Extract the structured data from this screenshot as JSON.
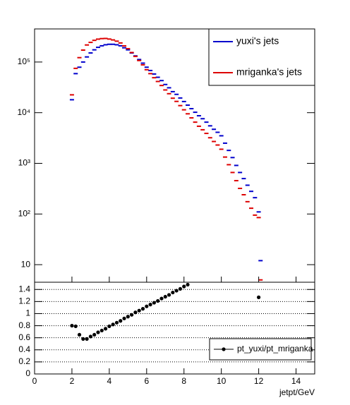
{
  "chart_data": [
    {
      "type": "scatter",
      "marker": "dash",
      "log_y": true,
      "x": [
        2.0,
        2.2,
        2.4,
        2.6,
        2.8,
        3.0,
        3.2,
        3.4,
        3.6,
        3.8,
        4.0,
        4.2,
        4.4,
        4.6,
        4.8,
        5.0,
        5.2,
        5.4,
        5.6,
        5.8,
        6.0,
        6.2,
        6.4,
        6.6,
        6.8,
        7.0,
        7.2,
        7.4,
        7.6,
        7.8,
        8.0,
        8.2,
        8.4,
        8.6,
        8.8,
        9.0,
        9.2,
        9.4,
        9.6,
        9.8,
        10.0,
        10.2,
        10.4,
        10.6,
        10.8,
        11.0,
        11.2,
        11.4,
        11.6,
        11.8,
        12.0,
        12.1
      ],
      "series": [
        {
          "name": "yuxi's jets",
          "color": "#0000cc",
          "values": [
            18000,
            59000,
            79000,
            100000,
            126000,
            151000,
            174000,
            195000,
            209000,
            219000,
            224000,
            224000,
            219000,
            209000,
            191000,
            174000,
            151000,
            132000,
            112000,
            95000,
            79000,
            68000,
            58000,
            50000,
            43000,
            36000,
            31000,
            26000,
            23000,
            19500,
            16600,
            14100,
            12000,
            10200,
            8700,
            7600,
            6500,
            5500,
            4700,
            4100,
            3500,
            2500,
            1800,
            1300,
            910,
            660,
            500,
            370,
            280,
            210,
            110,
            12
          ]
        },
        {
          "name": "mriganka's jets",
          "color": "#dd0000",
          "values": [
            22500,
            75000,
            122000,
            172000,
            217000,
            244000,
            268000,
            283000,
            290000,
            292000,
            284000,
            273000,
            258000,
            238000,
            208000,
            183000,
            154000,
            129000,
            107000,
            88000,
            70500,
            59000,
            49000,
            41300,
            34400,
            28100,
            23700,
            19300,
            16700,
            13800,
            11400,
            9500,
            7900,
            6500,
            5400,
            4600,
            3900,
            3200,
            2700,
            2300,
            1900,
            1330,
            940,
            660,
            455,
            320,
            240,
            175,
            130,
            95,
            85,
            5
          ]
        }
      ],
      "xlim": [
        0,
        15
      ],
      "ylim": [
        4.5,
        450000
      ],
      "yticks": [
        10,
        {
          "value": 100,
          "label": "10²"
        },
        {
          "value": 1000,
          "label": "10³"
        },
        {
          "value": 10000,
          "label": "10⁴"
        },
        {
          "value": 100000,
          "label": "10⁵"
        }
      ],
      "legend": "top-right"
    },
    {
      "type": "scatter",
      "marker": "circle",
      "x": [
        2.0,
        2.2,
        2.4,
        2.6,
        2.8,
        3.0,
        3.2,
        3.4,
        3.6,
        3.8,
        4.0,
        4.2,
        4.4,
        4.6,
        4.8,
        5.0,
        5.2,
        5.4,
        5.6,
        5.8,
        6.0,
        6.2,
        6.4,
        6.6,
        6.8,
        7.0,
        7.2,
        7.4,
        7.6,
        7.8,
        8.0,
        8.2,
        8.4,
        8.6,
        8.8,
        9.0,
        9.2,
        9.4,
        9.6,
        9.8,
        10.0,
        10.2,
        10.4,
        10.6,
        10.8,
        11.0,
        11.2,
        11.4,
        11.6,
        11.8,
        12.0,
        12.1
      ],
      "series": [
        {
          "name": "pt_yuxi/pt_mriganka",
          "color": "#000000",
          "values": [
            0.8,
            0.79,
            0.65,
            0.58,
            0.58,
            0.62,
            0.65,
            0.69,
            0.72,
            0.75,
            0.79,
            0.82,
            0.85,
            0.88,
            0.92,
            0.95,
            0.98,
            1.02,
            1.05,
            1.08,
            1.12,
            1.15,
            1.18,
            1.21,
            1.25,
            1.28,
            1.31,
            1.35,
            1.38,
            1.41,
            1.45,
            1.48,
            null,
            null,
            null,
            null,
            null,
            null,
            null,
            null,
            null,
            null,
            null,
            null,
            null,
            null,
            null,
            null,
            null,
            null,
            1.27,
            null
          ]
        }
      ],
      "xlim": [
        0,
        15
      ],
      "ylim": [
        0,
        1.52
      ],
      "xticks": [
        0,
        2,
        4,
        6,
        8,
        10,
        12,
        14
      ],
      "yticks": [
        0,
        0.2,
        0.4,
        0.6,
        0.8,
        1,
        1.2,
        1.4
      ],
      "grid": true,
      "xlabel": "jetpt/GeV",
      "legend": "bottom-right"
    }
  ]
}
